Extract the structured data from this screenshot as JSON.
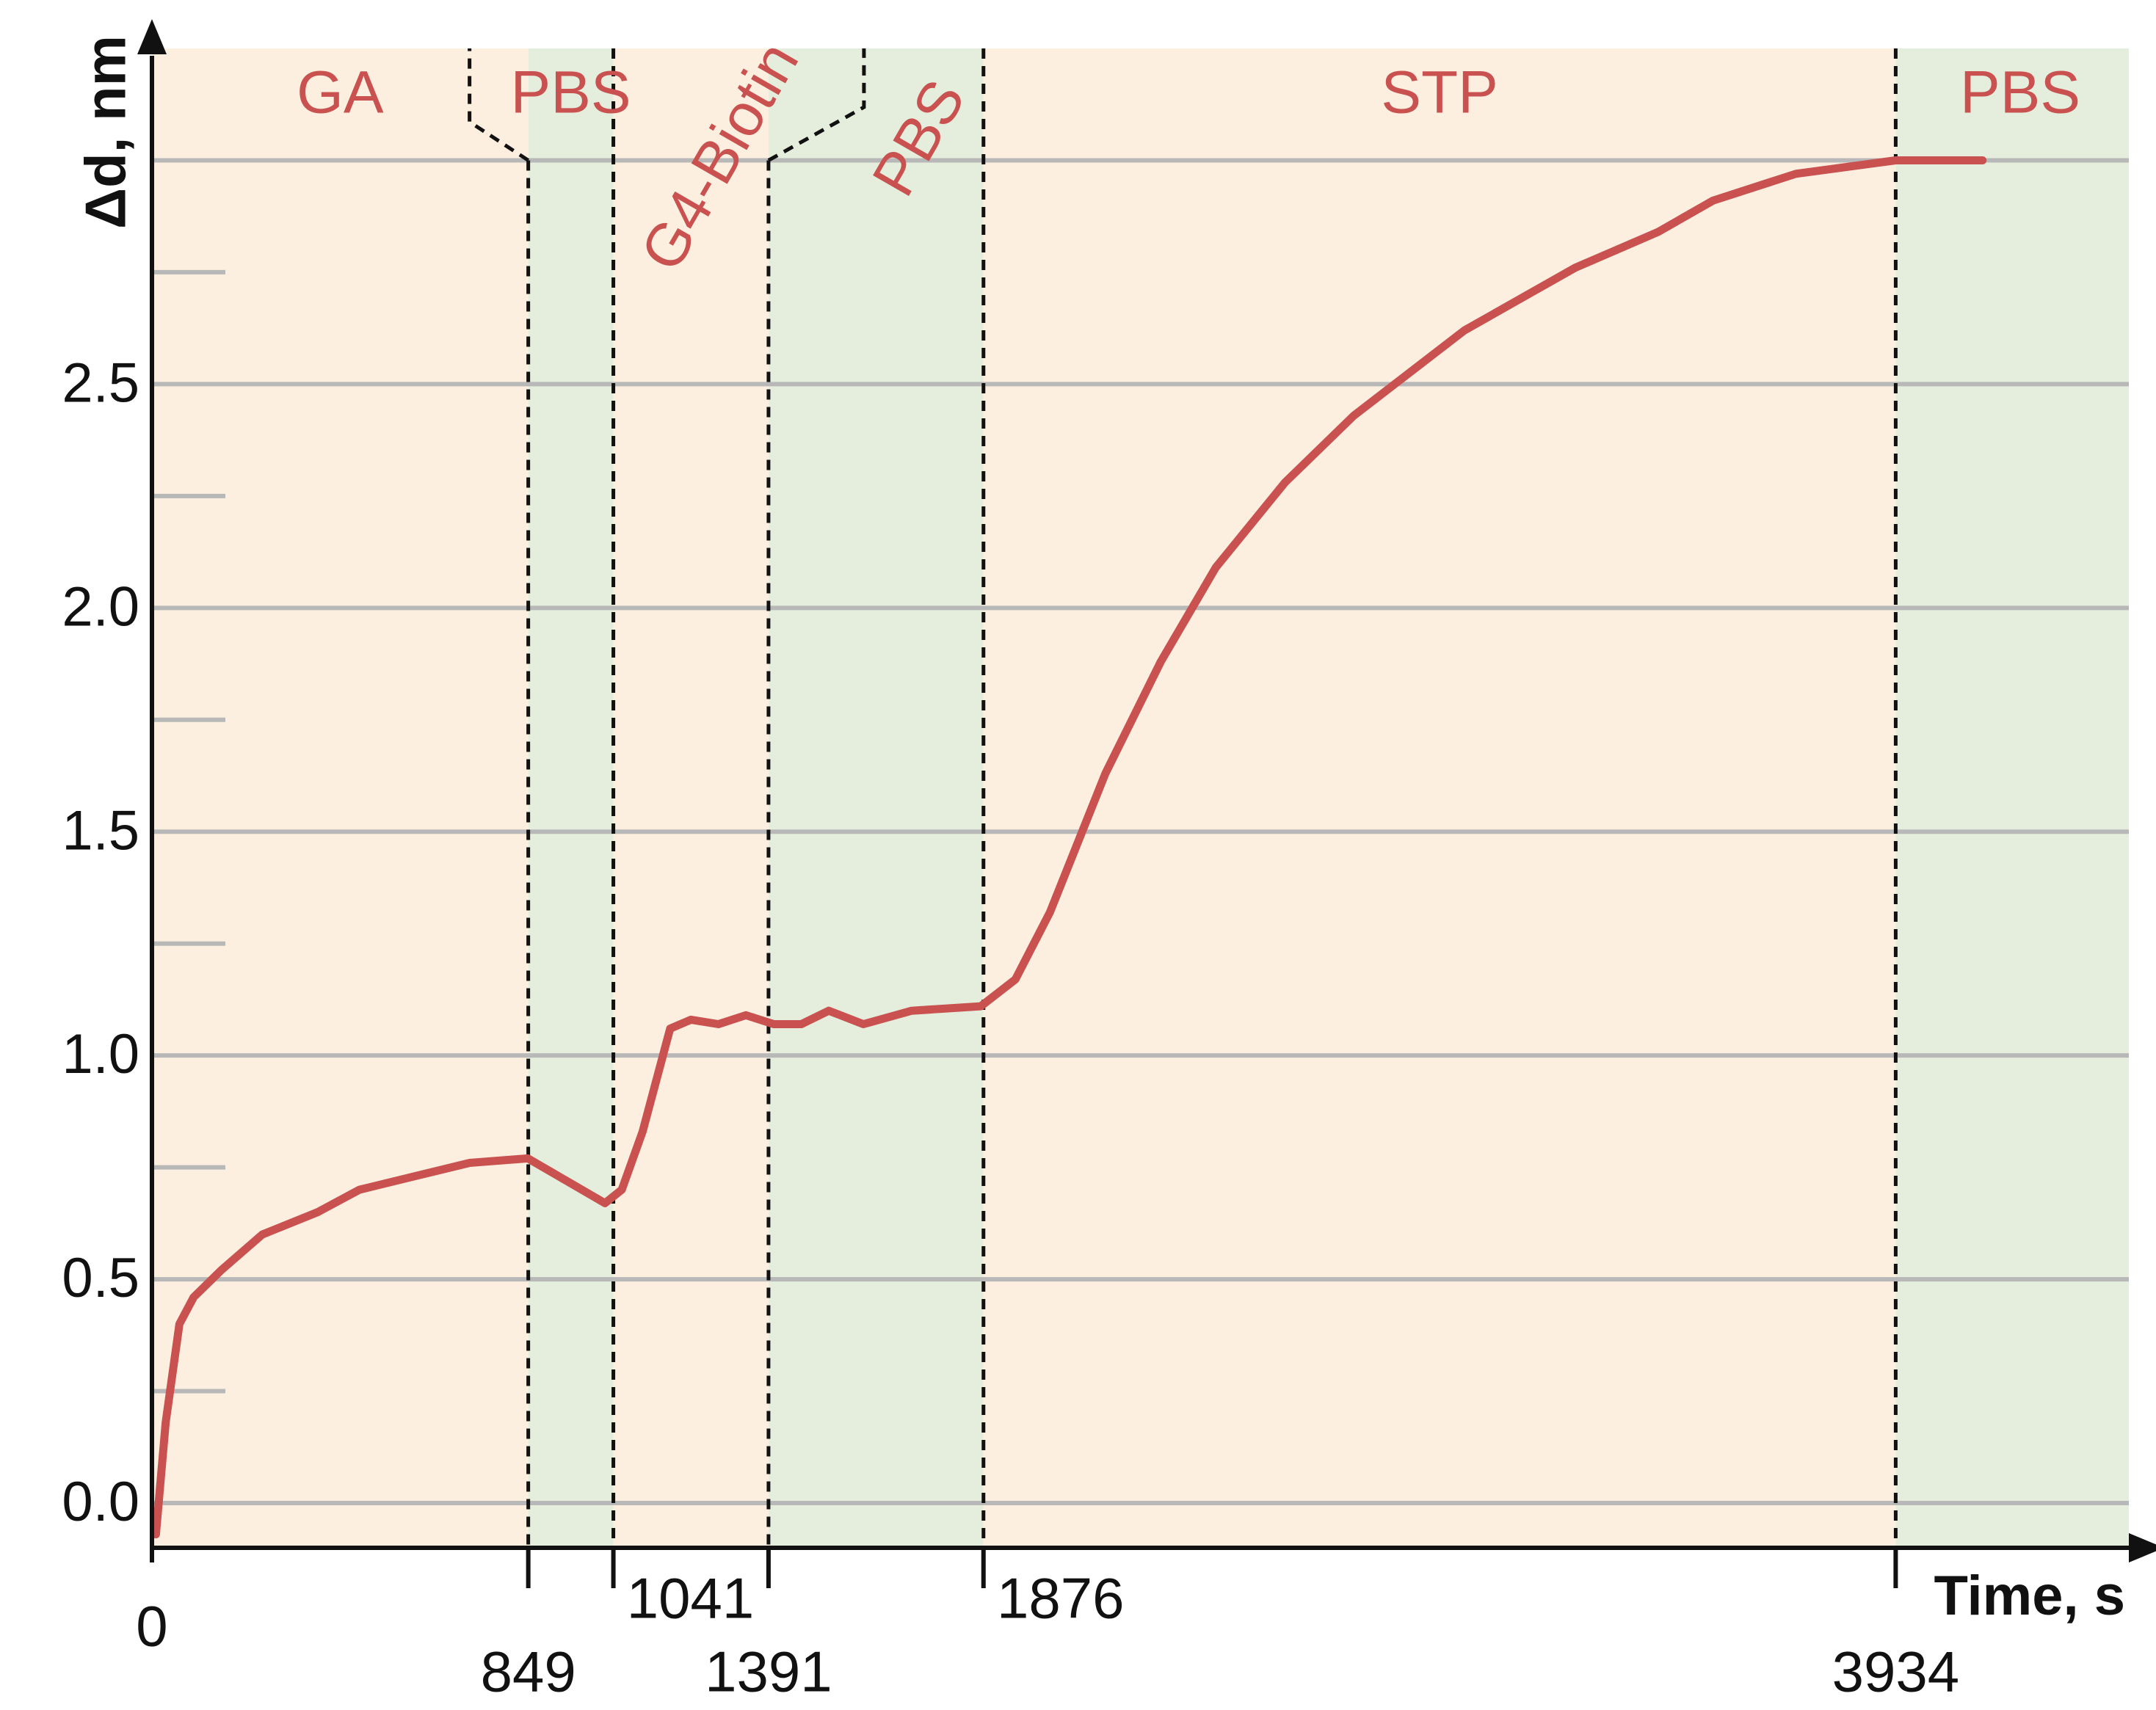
{
  "chart_data": {
    "type": "line",
    "y_axis_label": "Δd, nm",
    "x_axis_label": "Time, s",
    "xlim": [
      0,
      4460
    ],
    "ylim": [
      -0.1,
      3.25
    ],
    "xticks": [
      0,
      849,
      1041,
      1391,
      1876,
      3934
    ],
    "yticks": [
      {
        "value": 0,
        "label": "0.0"
      },
      0.5,
      {
        "value": 1,
        "label": "1.0"
      },
      1.5,
      {
        "value": 2,
        "label": "2.0"
      },
      2.5
    ],
    "y_minor_ticks": [
      0.25,
      0.75,
      1.25,
      1.75,
      2.25,
      2.75
    ],
    "y_unlabeled_gridlines": [
      3
    ],
    "grid": true,
    "phases": [
      {
        "label": "GA",
        "start": 0,
        "end": 849,
        "color": "#fcefdf"
      },
      {
        "label": "PBS",
        "start": 849,
        "end": 1041,
        "color": "#e5eedd"
      },
      {
        "label": "G4-Biotin",
        "start": 1041,
        "end": 1391,
        "color": "#fcefdf"
      },
      {
        "label": "PBS",
        "start": 1391,
        "end": 1876,
        "color": "#e5eedd"
      },
      {
        "label": "STP",
        "start": 1876,
        "end": 3934,
        "color": "#fcefdf"
      },
      {
        "label": "PBS",
        "start": 3934,
        "end": 4460,
        "color": "#e5eedd"
      }
    ],
    "x": [
      9,
      31,
      62,
      94,
      156,
      249,
      374,
      468,
      592,
      717,
      848,
      935,
      1022,
      1060,
      1107,
      1169,
      1216,
      1278,
      1340,
      1403,
      1465,
      1527,
      1605,
      1714,
      1870,
      1948,
      2026,
      2151,
      2276,
      2400,
      2556,
      2712,
      2961,
      3211,
      3398,
      3522,
      3709,
      3934,
      4130
    ],
    "series": [
      {
        "color": "#c9514f",
        "values": [
          -0.07,
          0.18,
          0.4,
          0.46,
          0.52,
          0.6,
          0.65,
          0.7,
          0.73,
          0.76,
          0.77,
          0.72,
          0.67,
          0.7,
          0.83,
          1.06,
          1.08,
          1.07,
          1.09,
          1.07,
          1.07,
          1.1,
          1.07,
          1.1,
          1.11,
          1.17,
          1.32,
          1.63,
          1.88,
          2.09,
          2.28,
          2.43,
          2.62,
          2.76,
          2.84,
          2.91,
          2.97,
          3.0,
          3.0
        ]
      }
    ]
  }
}
